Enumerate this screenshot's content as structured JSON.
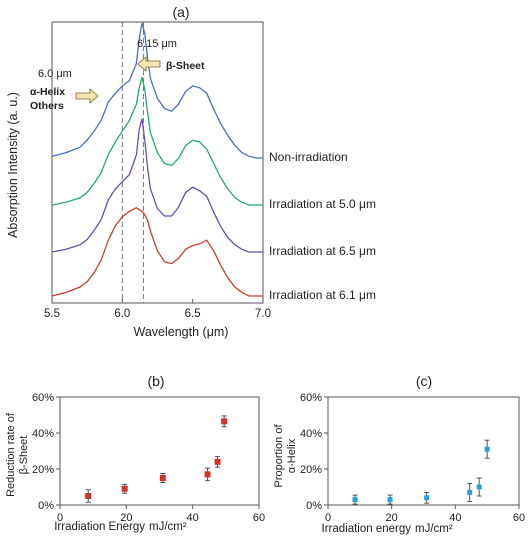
{
  "panels": {
    "a": {
      "label": "(a)"
    },
    "b": {
      "label": "(b)"
    },
    "c": {
      "label": "(c)"
    }
  },
  "chart_data": [
    {
      "panel": "(a)",
      "type": "line",
      "xlabel": "Wavelength (μm)",
      "ylabel": "Absorption Intensity (a. u.)",
      "xlim": [
        5.5,
        7.0
      ],
      "xticks": [
        "5.5",
        "6.0",
        "6.5",
        "7.0"
      ],
      "grid": false,
      "reference_lines": [
        6.0,
        6.15
      ],
      "annotations": {
        "peak_6_15": "6.15 μm",
        "peak_6_0": "6.0 μm",
        "beta_sheet": "β-Sheet",
        "alpha_helix": "α-Helix",
        "others": "Others"
      },
      "series": [
        {
          "name": "Non-irradiation",
          "color": "#4a6fc0",
          "x": [
            5.5,
            5.6,
            5.7,
            5.75,
            5.8,
            5.85,
            5.9,
            5.95,
            6.0,
            6.05,
            6.1,
            6.12,
            6.14,
            6.16,
            6.18,
            6.2,
            6.25,
            6.3,
            6.35,
            6.4,
            6.45,
            6.5,
            6.55,
            6.6,
            6.65,
            6.7,
            6.75,
            6.8,
            6.85,
            6.9,
            6.95,
            7.0
          ],
          "y": [
            0.02,
            0.06,
            0.12,
            0.2,
            0.3,
            0.42,
            0.62,
            0.72,
            0.8,
            0.86,
            1.05,
            1.32,
            1.5,
            1.38,
            1.1,
            0.88,
            0.66,
            0.55,
            0.52,
            0.6,
            0.74,
            0.8,
            0.78,
            0.72,
            0.54,
            0.38,
            0.25,
            0.14,
            0.06,
            0.02,
            0.0,
            0.0
          ]
        },
        {
          "name": "Irradiation at 5.0 μm",
          "color": "#2aa86a",
          "x": [
            5.5,
            5.6,
            5.7,
            5.75,
            5.8,
            5.85,
            5.9,
            5.95,
            6.0,
            6.05,
            6.1,
            6.12,
            6.14,
            6.16,
            6.18,
            6.2,
            6.25,
            6.3,
            6.35,
            6.4,
            6.45,
            6.5,
            6.55,
            6.6,
            6.65,
            6.7,
            6.75,
            6.8,
            6.85,
            6.9,
            6.95,
            7.0
          ],
          "y": [
            0.0,
            0.03,
            0.08,
            0.14,
            0.24,
            0.36,
            0.56,
            0.7,
            0.82,
            0.94,
            1.12,
            1.3,
            1.42,
            1.28,
            1.02,
            0.8,
            0.58,
            0.46,
            0.44,
            0.52,
            0.66,
            0.72,
            0.7,
            0.62,
            0.46,
            0.3,
            0.18,
            0.08,
            0.03,
            0.0,
            0.0,
            0.0
          ]
        },
        {
          "name": "Irradiation at 6.5 μm",
          "color": "#6a4fa8",
          "x": [
            5.5,
            5.6,
            5.7,
            5.75,
            5.8,
            5.85,
            5.9,
            5.95,
            6.0,
            6.05,
            6.1,
            6.12,
            6.14,
            6.16,
            6.18,
            6.2,
            6.25,
            6.3,
            6.35,
            6.4,
            6.45,
            6.5,
            6.55,
            6.6,
            6.65,
            6.7,
            6.75,
            6.8,
            6.85,
            6.9,
            6.95,
            7.0
          ],
          "y": [
            0.0,
            0.03,
            0.08,
            0.14,
            0.24,
            0.36,
            0.58,
            0.7,
            0.78,
            0.86,
            1.08,
            1.36,
            1.48,
            1.24,
            0.92,
            0.7,
            0.48,
            0.4,
            0.4,
            0.5,
            0.66,
            0.72,
            0.68,
            0.62,
            0.44,
            0.28,
            0.16,
            0.08,
            0.03,
            0.0,
            0.0,
            0.0
          ]
        },
        {
          "name": "Irradiation at 6.1 μm",
          "color": "#c8402e",
          "x": [
            5.5,
            5.6,
            5.7,
            5.75,
            5.8,
            5.85,
            5.9,
            5.95,
            6.0,
            6.05,
            6.1,
            6.12,
            6.14,
            6.16,
            6.18,
            6.2,
            6.25,
            6.3,
            6.35,
            6.4,
            6.45,
            6.5,
            6.55,
            6.6,
            6.65,
            6.7,
            6.75,
            6.8,
            6.85,
            6.9,
            6.95,
            7.0
          ],
          "y": [
            0.0,
            0.04,
            0.1,
            0.16,
            0.26,
            0.4,
            0.62,
            0.78,
            0.88,
            0.94,
            0.98,
            0.96,
            0.94,
            0.9,
            0.84,
            0.72,
            0.5,
            0.38,
            0.36,
            0.42,
            0.52,
            0.56,
            0.58,
            0.62,
            0.5,
            0.34,
            0.2,
            0.1,
            0.04,
            0.0,
            0.0,
            0.0
          ]
        }
      ]
    },
    {
      "panel": "(b)",
      "type": "scatter",
      "xlabel": "Irradiation Energy",
      "xunit": "mJ/cm²",
      "ylabel": [
        "Reduction rate of",
        "β-Sheet"
      ],
      "xlim": [
        0,
        60
      ],
      "ylim": [
        0,
        60
      ],
      "xticks": [
        "0",
        "20",
        "40",
        "60"
      ],
      "yticks": [
        "0%",
        "20%",
        "40%",
        "60%"
      ],
      "grid": false,
      "color": "#d0332b",
      "x": [
        8.5,
        19.5,
        31,
        44.5,
        47.5,
        49.5
      ],
      "y": [
        5,
        9,
        15,
        17,
        24,
        46.5
      ],
      "err": [
        3.5,
        2.5,
        2.5,
        3.5,
        3,
        3
      ]
    },
    {
      "panel": "(c)",
      "type": "scatter",
      "xlabel": "Irradiation energy",
      "xunit": "mJ/cm²",
      "ylabel": [
        "Proportion of",
        "α-Helix"
      ],
      "xlim": [
        0,
        60
      ],
      "ylim": [
        0,
        60
      ],
      "xticks": [
        "0",
        "20",
        "40",
        "60"
      ],
      "yticks": [
        "0%",
        "20%",
        "40%",
        "60%"
      ],
      "grid": false,
      "color": "#2a9fd8",
      "x": [
        8.5,
        19.5,
        31,
        44.5,
        47.5,
        50
      ],
      "y": [
        3,
        3,
        4,
        7,
        10,
        31
      ],
      "err": [
        2.5,
        2.5,
        3,
        5,
        5,
        5
      ]
    }
  ]
}
